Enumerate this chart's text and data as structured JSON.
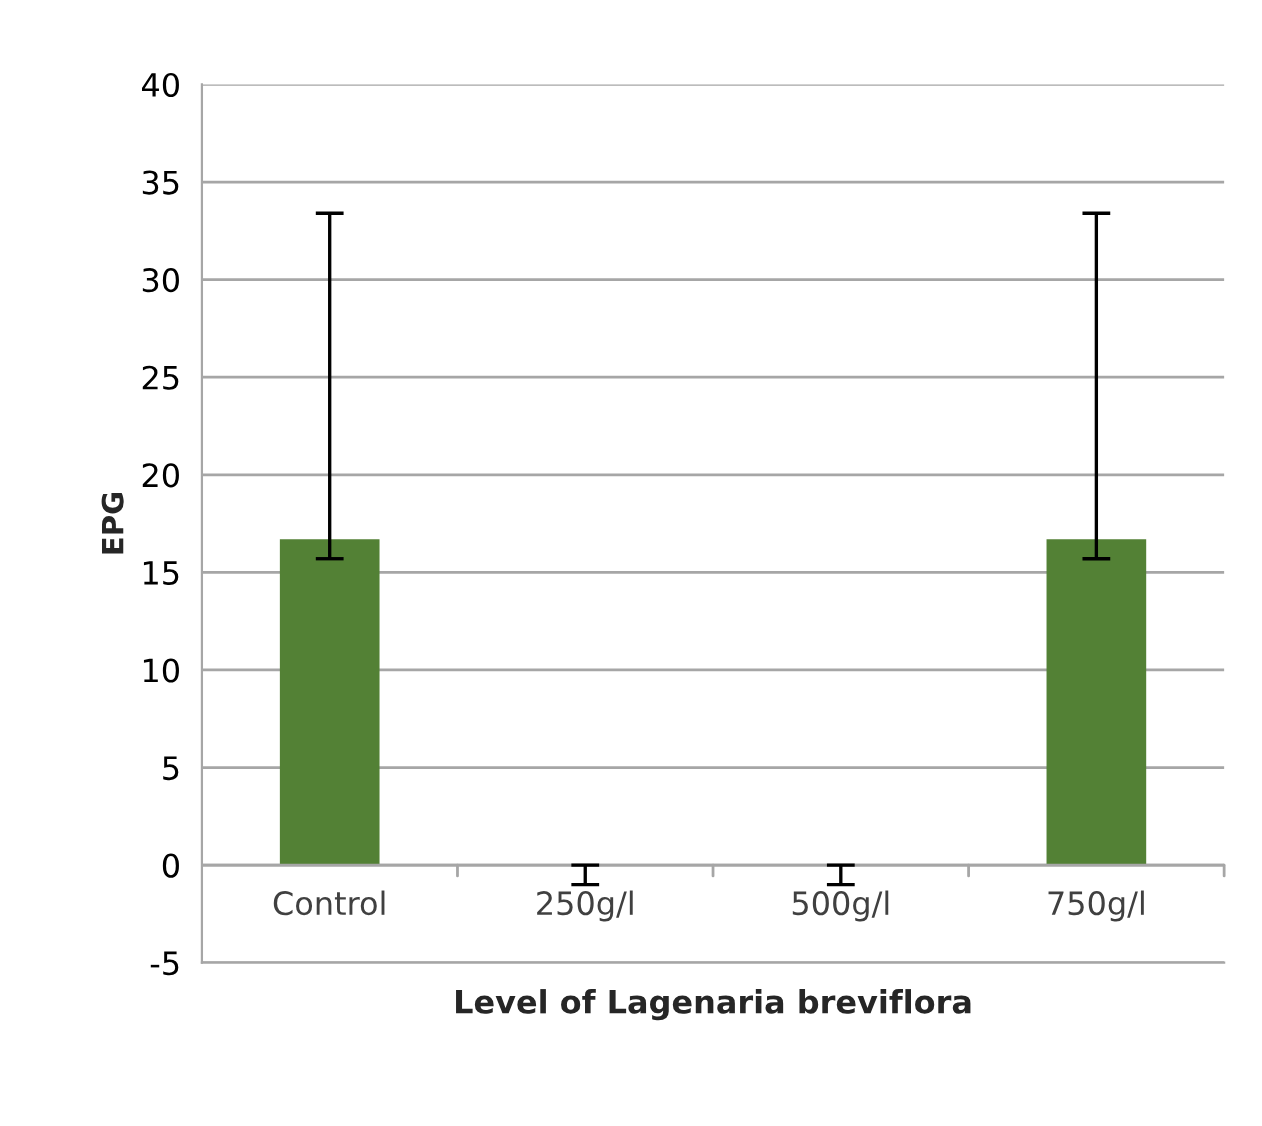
{
  "chart_data": {
    "type": "bar",
    "xlabel": "Level of Lagenaria breviflora",
    "ylabel": "EPG",
    "categories": [
      "Control",
      "250g/l",
      "500g/l",
      "750g/l"
    ],
    "values": [
      16.7,
      0,
      0,
      16.7
    ],
    "color": "#538135",
    "errors": [
      [
        15.7,
        33.4
      ],
      [
        -1,
        0
      ],
      [
        -1,
        0
      ],
      [
        15.7,
        33.4
      ]
    ],
    "ylim": [
      -5,
      40
    ],
    "yticks": [
      -5,
      0,
      5,
      10,
      15,
      20,
      25,
      30,
      35,
      40
    ],
    "grid": "y",
    "legend": false
  }
}
